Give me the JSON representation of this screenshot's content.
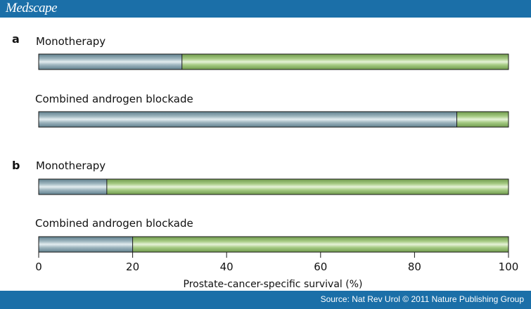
{
  "header": {
    "brand": "Medscape"
  },
  "footer": {
    "source": "Source: Nat Rev Urol © 2011 Nature Publishing Group"
  },
  "colors": {
    "header_bg": "#1b6fa8",
    "blue_segment": "#7f9aa4",
    "green_segment": "#8db56c"
  },
  "chart_data": {
    "type": "bar",
    "orientation": "horizontal",
    "stacked": true,
    "xlabel": "Prostate-cancer-specific survival (%)",
    "xlim": [
      0,
      100
    ],
    "xticks": [
      0,
      20,
      40,
      60,
      80,
      100
    ],
    "panels": [
      {
        "label": "a",
        "bars": [
          {
            "category": "Monotherapy",
            "blue_end": 30.5
          },
          {
            "category": "Combined androgen blockade",
            "blue_end": 89
          }
        ]
      },
      {
        "label": "b",
        "bars": [
          {
            "category": "Monotherapy",
            "blue_end": 14.5
          },
          {
            "category": "Combined androgen blockade",
            "blue_end": 20
          }
        ]
      }
    ]
  }
}
